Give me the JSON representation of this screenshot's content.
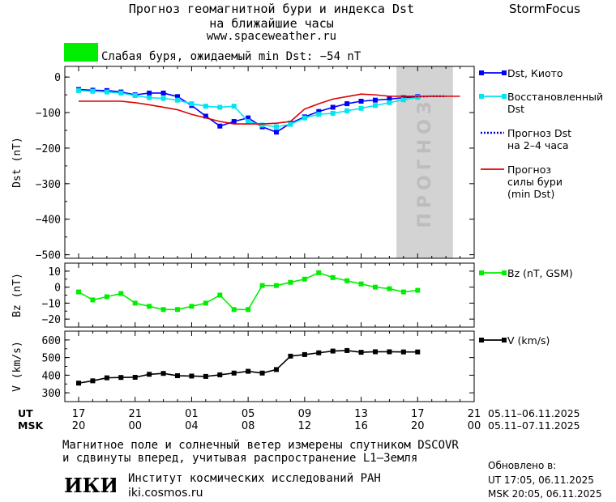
{
  "header": {
    "title_line1": "Прогноз геомагнитной бури и индекса Dst",
    "title_line2": "на ближайшие часы",
    "site_url": "www.spaceweather.ru",
    "brand": "StormFocus"
  },
  "storm_status": {
    "text": "Слабая буря, ожидаемый min Dst: −54 nT",
    "color": "#00ee00"
  },
  "footer": {
    "note_line1": "Магнитное поле и солнечный ветер измерены спутником DSCOVR",
    "note_line2": "и сдвинуты вперед, учитывая распространение L1–Земля",
    "updated_label": "Обновлено в:",
    "updated_ut": "UT  17:05, 06.11.2025",
    "updated_msk": "MSK 20:05, 06.11.2025",
    "institute_name": "Институт космических исследований РАН",
    "institute_url": "iki.cosmos.ru",
    "logo_text": "ИКИ"
  },
  "chart_data": [
    {
      "type": "line",
      "panel": "dst",
      "ylabel": "Dst (nT)",
      "ylim": [
        -510,
        30
      ],
      "yticks": [
        0,
        -100,
        -200,
        -300,
        -400,
        -500
      ],
      "xlim": [
        17,
        44
      ],
      "forecast_region": {
        "x_start": 39.5,
        "x_end": 43.5,
        "label": "ПРОГНОЗ",
        "color": "#d3d3d3"
      },
      "legend_position": "right",
      "series": [
        {
          "name": "Dst, Киото",
          "color": "#0000ff",
          "marker": "square",
          "x": [
            17,
            18,
            19,
            20,
            21,
            22,
            23,
            24,
            25,
            26,
            27,
            28,
            29,
            30,
            31,
            32,
            33,
            34,
            35,
            36,
            37,
            38,
            39,
            40,
            41
          ],
          "y": [
            -35,
            -37,
            -38,
            -42,
            -50,
            -45,
            -45,
            -55,
            -80,
            -110,
            -138,
            -125,
            -115,
            -140,
            -155,
            -130,
            -112,
            -97,
            -85,
            -75,
            -68,
            -65,
            -62,
            -58,
            -55
          ]
        },
        {
          "name": "Восстановленный Dst",
          "color": "#00e5ee",
          "marker": "square",
          "x": [
            17,
            18,
            19,
            20,
            21,
            22,
            23,
            24,
            25,
            26,
            27,
            28,
            29,
            30,
            31,
            32,
            33,
            34,
            35,
            36,
            37,
            38,
            39,
            40,
            41
          ],
          "y": [
            -38,
            -40,
            -42,
            -45,
            -52,
            -58,
            -60,
            -65,
            -75,
            -82,
            -85,
            -82,
            -125,
            -135,
            -140,
            -133,
            -115,
            -105,
            -102,
            -95,
            -88,
            -80,
            -72,
            -64,
            -57
          ]
        },
        {
          "name": "Прогноз Dst на 2–4 часа",
          "color": "#0000cc",
          "style": "dotted",
          "x": [
            40,
            41,
            42,
            43
          ],
          "y": [
            -56,
            -55,
            -54,
            -54
          ]
        },
        {
          "name": "Прогноз силы бури (min Dst)",
          "color": "#dd0000",
          "style": "solid",
          "x": [
            17,
            18,
            19,
            20,
            21,
            22,
            23,
            24,
            25,
            26,
            27,
            28,
            29,
            30,
            31,
            32,
            33,
            34,
            35,
            36,
            37,
            38,
            39,
            40,
            41,
            42,
            43,
            44
          ],
          "y": [
            -68,
            -68,
            -68,
            -68,
            -72,
            -78,
            -85,
            -92,
            -105,
            -115,
            -125,
            -132,
            -132,
            -132,
            -130,
            -125,
            -90,
            -75,
            -62,
            -55,
            -48,
            -50,
            -54,
            -54,
            -54,
            -54,
            -54,
            -54
          ]
        }
      ]
    },
    {
      "type": "line",
      "panel": "bz",
      "ylabel": "Bz (nT)",
      "ylim": [
        -25,
        15
      ],
      "yticks": [
        10,
        0,
        -10,
        -20
      ],
      "xlim": [
        17,
        44
      ],
      "series": [
        {
          "name": "Bz (nT, GSM)",
          "color": "#00ee00",
          "marker": "square",
          "x": [
            17,
            18,
            19,
            20,
            21,
            22,
            23,
            24,
            25,
            26,
            27,
            28,
            29,
            30,
            31,
            32,
            33,
            34,
            35,
            36,
            37,
            38,
            39,
            40,
            41
          ],
          "y": [
            -3,
            -8,
            -6,
            -4,
            -10,
            -12,
            -14,
            -14,
            -12,
            -10,
            -5,
            -14,
            -14,
            1,
            1,
            3,
            5,
            9,
            6,
            4,
            2,
            0,
            -1,
            -3,
            -2
          ]
        }
      ]
    },
    {
      "type": "line",
      "panel": "v",
      "ylabel": "V (km/s)",
      "ylim": [
        250,
        650
      ],
      "yticks": [
        600,
        500,
        400,
        300
      ],
      "xlim": [
        17,
        44
      ],
      "series": [
        {
          "name": "V (km/s)",
          "color": "#000000",
          "marker": "square",
          "x": [
            17,
            18,
            19,
            20,
            21,
            22,
            23,
            24,
            25,
            26,
            27,
            28,
            29,
            30,
            31,
            32,
            33,
            34,
            35,
            36,
            37,
            38,
            39,
            40,
            41
          ],
          "y": [
            355,
            368,
            385,
            387,
            388,
            405,
            410,
            397,
            395,
            393,
            402,
            412,
            422,
            412,
            432,
            508,
            517,
            527,
            537,
            540,
            530,
            533,
            533,
            532,
            532
          ]
        }
      ]
    }
  ],
  "time_axis": {
    "ut_label": "UT",
    "msk_label": "MSK",
    "ticks": [
      {
        "x": 17,
        "ut": "17",
        "msk": "20"
      },
      {
        "x": 21,
        "ut": "21",
        "msk": "00"
      },
      {
        "x": 25,
        "ut": "01",
        "msk": "04"
      },
      {
        "x": 29,
        "ut": "05",
        "msk": "08"
      },
      {
        "x": 33,
        "ut": "09",
        "msk": "12"
      },
      {
        "x": 37,
        "ut": "13",
        "msk": "16"
      },
      {
        "x": 41,
        "ut": "17",
        "msk": "20"
      },
      {
        "x": 45,
        "ut": "21",
        "msk": "00"
      }
    ],
    "ut_range": "05.11–06.11.2025",
    "msk_range": "05.11–07.11.2025"
  }
}
